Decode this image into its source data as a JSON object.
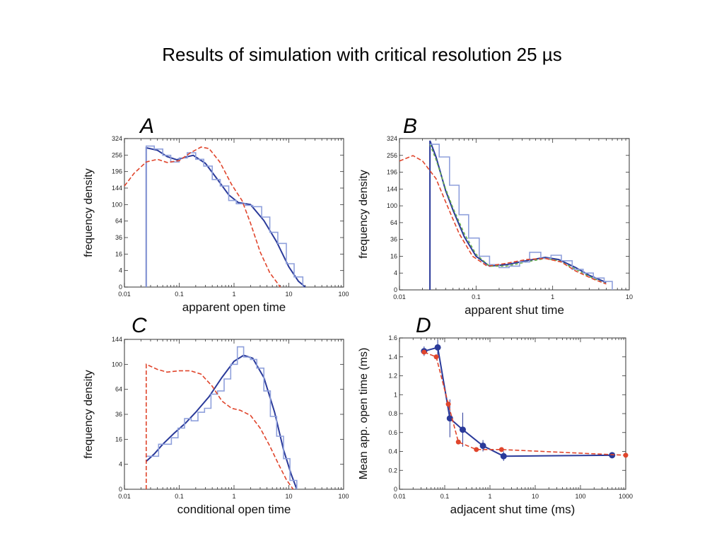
{
  "title": "Results of simulation with critical resolution 25 µs",
  "colors": {
    "fit": "#2a3a9a",
    "hist": "#8fa0dc",
    "ideal": "#e0452c",
    "green": "#6ab04c",
    "frame": "#555555"
  },
  "chart_data": [
    {
      "panel": "A",
      "type": "line",
      "xscale": "log",
      "yscale": "sqrt",
      "xlabel": "apparent open time",
      "ylabel": "frequency density",
      "xlim": [
        0.01,
        100
      ],
      "ylim": [
        0,
        324
      ],
      "xticks": [
        0.01,
        0.1,
        1,
        10,
        100
      ],
      "xtick_labels": [
        "0.01",
        "0.1",
        "1",
        "10",
        "100"
      ],
      "yticks": [
        0,
        4,
        16,
        36,
        64,
        100,
        144,
        196,
        256,
        324
      ],
      "series": [
        {
          "style": "fit",
          "x": [
            0.025,
            0.025,
            0.04,
            0.06,
            0.09,
            0.13,
            0.18,
            0.3,
            0.5,
            0.8,
            1.2,
            2,
            3.5,
            6,
            10,
            15,
            20
          ],
          "y": [
            0,
            285,
            275,
            250,
            238,
            248,
            255,
            225,
            170,
            125,
            105,
            100,
            65,
            30,
            6,
            0.5,
            0
          ]
        },
        {
          "style": "hist",
          "x": [
            0.025,
            0.025,
            0.035,
            0.05,
            0.07,
            0.1,
            0.14,
            0.2,
            0.28,
            0.4,
            0.56,
            0.8,
            1.1,
            1.6,
            2.2,
            3.2,
            4.5,
            6.3,
            9,
            12.5,
            18
          ],
          "y": [
            0,
            292,
            280,
            255,
            230,
            245,
            265,
            240,
            215,
            170,
            150,
            110,
            102,
            98,
            95,
            72,
            44,
            28,
            8,
            1.5,
            0
          ]
        },
        {
          "style": "ideal",
          "x": [
            0.01,
            0.015,
            0.025,
            0.04,
            0.06,
            0.1,
            0.16,
            0.25,
            0.35,
            0.55,
            0.9,
            1.4,
            2,
            3,
            4.5,
            7
          ],
          "y": [
            150,
            190,
            230,
            240,
            228,
            235,
            265,
            288,
            282,
            230,
            155,
            110,
            60,
            18,
            3,
            0
          ]
        }
      ]
    },
    {
      "panel": "B",
      "type": "line",
      "xscale": "log",
      "yscale": "sqrt",
      "xlabel": "apparent shut time",
      "ylabel": "frequency density",
      "xlim": [
        0.01,
        10
      ],
      "ylim": [
        0,
        324
      ],
      "xticks": [
        0.01,
        0.1,
        1,
        10
      ],
      "xtick_labels": [
        "0.01",
        "0.1",
        "1",
        "10"
      ],
      "yticks": [
        0,
        4,
        16,
        36,
        64,
        100,
        144,
        196,
        256,
        324
      ],
      "series": [
        {
          "style": "fit",
          "x": [
            0.025,
            0.025,
            0.03,
            0.04,
            0.05,
            0.07,
            0.1,
            0.15,
            0.25,
            0.45,
            0.8,
            1.2,
            2,
            3,
            5
          ],
          "y": [
            0,
            315,
            250,
            140,
            90,
            40,
            16,
            8,
            9,
            12,
            15,
            13,
            7,
            3,
            0.8
          ]
        },
        {
          "style": "green",
          "x": [
            0.025,
            0.03,
            0.04,
            0.05,
            0.07,
            0.1,
            0.15,
            0.25,
            0.45,
            0.8,
            1.2,
            2,
            3,
            5
          ],
          "y": [
            300,
            240,
            145,
            95,
            45,
            18,
            8,
            8,
            11,
            14,
            12,
            6,
            2.5,
            0.5
          ]
        },
        {
          "style": "hist",
          "x": [
            0.025,
            0.033,
            0.045,
            0.06,
            0.08,
            0.11,
            0.15,
            0.2,
            0.27,
            0.37,
            0.5,
            0.7,
            0.95,
            1.3,
            1.8,
            2.5,
            3.4,
            4.7,
            6
          ],
          "y": [
            300,
            250,
            155,
            80,
            38,
            16,
            9,
            7,
            8,
            11,
            20,
            14,
            17,
            12,
            6,
            4,
            2,
            1,
            0
          ]
        },
        {
          "style": "ideal",
          "x": [
            0.01,
            0.015,
            0.02,
            0.03,
            0.04,
            0.06,
            0.09,
            0.14,
            0.25,
            0.45,
            0.8,
            1.3,
            2,
            3.5,
            5
          ],
          "y": [
            235,
            255,
            235,
            175,
            110,
            45,
            16,
            8,
            10,
            13,
            14,
            11,
            5,
            1.5,
            0.5
          ]
        }
      ]
    },
    {
      "panel": "C",
      "type": "line",
      "xscale": "log",
      "yscale": "sqrt",
      "xlabel": "conditional open time",
      "ylabel": "frequency density",
      "xlim": [
        0.01,
        100
      ],
      "ylim": [
        0,
        144
      ],
      "xticks": [
        0.01,
        0.1,
        1,
        10,
        100
      ],
      "xtick_labels": [
        "0.01",
        "0.1",
        "1",
        "10",
        "100"
      ],
      "yticks": [
        0,
        4,
        16,
        36,
        64,
        100,
        144
      ],
      "series": [
        {
          "style": "fit",
          "x": [
            0.025,
            0.035,
            0.05,
            0.08,
            0.13,
            0.2,
            0.35,
            0.6,
            1,
            1.5,
            2.2,
            3.5,
            5.5,
            8,
            11,
            14
          ],
          "y": [
            5,
            8,
            13,
            20,
            28,
            38,
            55,
            80,
            105,
            115,
            110,
            80,
            38,
            10,
            1.5,
            0
          ]
        },
        {
          "style": "hist",
          "x": [
            0.025,
            0.032,
            0.042,
            0.055,
            0.072,
            0.095,
            0.125,
            0.165,
            0.22,
            0.29,
            0.38,
            0.5,
            0.66,
            0.87,
            1.15,
            1.5,
            2,
            2.6,
            3.5,
            4.6,
            6,
            8,
            10.5,
            14
          ],
          "y": [
            7,
            7,
            13,
            13,
            17,
            24,
            32,
            30,
            38,
            42,
            58,
            62,
            78,
            100,
            130,
            112,
            108,
            94,
            62,
            34,
            18,
            6,
            0.5,
            0
          ]
        },
        {
          "style": "ideal",
          "x": [
            0.025,
            0.025,
            0.04,
            0.06,
            0.1,
            0.16,
            0.25,
            0.4,
            0.6,
            0.9,
            1.3,
            2,
            3,
            4.5,
            6.5,
            9,
            12
          ],
          "y": [
            0,
            100,
            92,
            88,
            90,
            90,
            85,
            68,
            50,
            42,
            40,
            35,
            24,
            12,
            4,
            0.6,
            0
          ]
        }
      ]
    },
    {
      "panel": "D",
      "type": "scatter",
      "xscale": "log",
      "xlabel": "adjacent shut time (ms)",
      "ylabel": "Mean app. open time (ms)",
      "xlim": [
        0.01,
        1000
      ],
      "ylim": [
        0,
        1.6
      ],
      "xticks": [
        0.01,
        0.1,
        1,
        10,
        100,
        1000
      ],
      "xtick_labels": [
        "0.01",
        "0.1",
        "1",
        "10",
        "100",
        "1000"
      ],
      "yticks": [
        0,
        0.2,
        0.4,
        0.6,
        0.8,
        1,
        1.2,
        1.4,
        1.6
      ],
      "ytick_labels": [
        "0",
        "0.2",
        "0.4",
        "0.6",
        "0.8",
        "1",
        "1.2",
        "1.4",
        "1.6"
      ],
      "series": [
        {
          "style": "fit",
          "x": [
            0.035,
            0.07,
            0.13,
            0.25,
            0.7,
            2,
            500
          ],
          "y": [
            1.46,
            1.5,
            0.75,
            0.63,
            0.46,
            0.35,
            0.36
          ],
          "err": [
            0.05,
            0.08,
            0.2,
            0.18,
            0.06,
            0.05,
            0.02
          ]
        },
        {
          "style": "ideal",
          "x": [
            0.035,
            0.065,
            0.12,
            0.2,
            0.5,
            1.8,
            1000
          ],
          "y": [
            1.45,
            1.4,
            0.9,
            0.5,
            0.42,
            0.42,
            0.36
          ]
        }
      ]
    }
  ]
}
